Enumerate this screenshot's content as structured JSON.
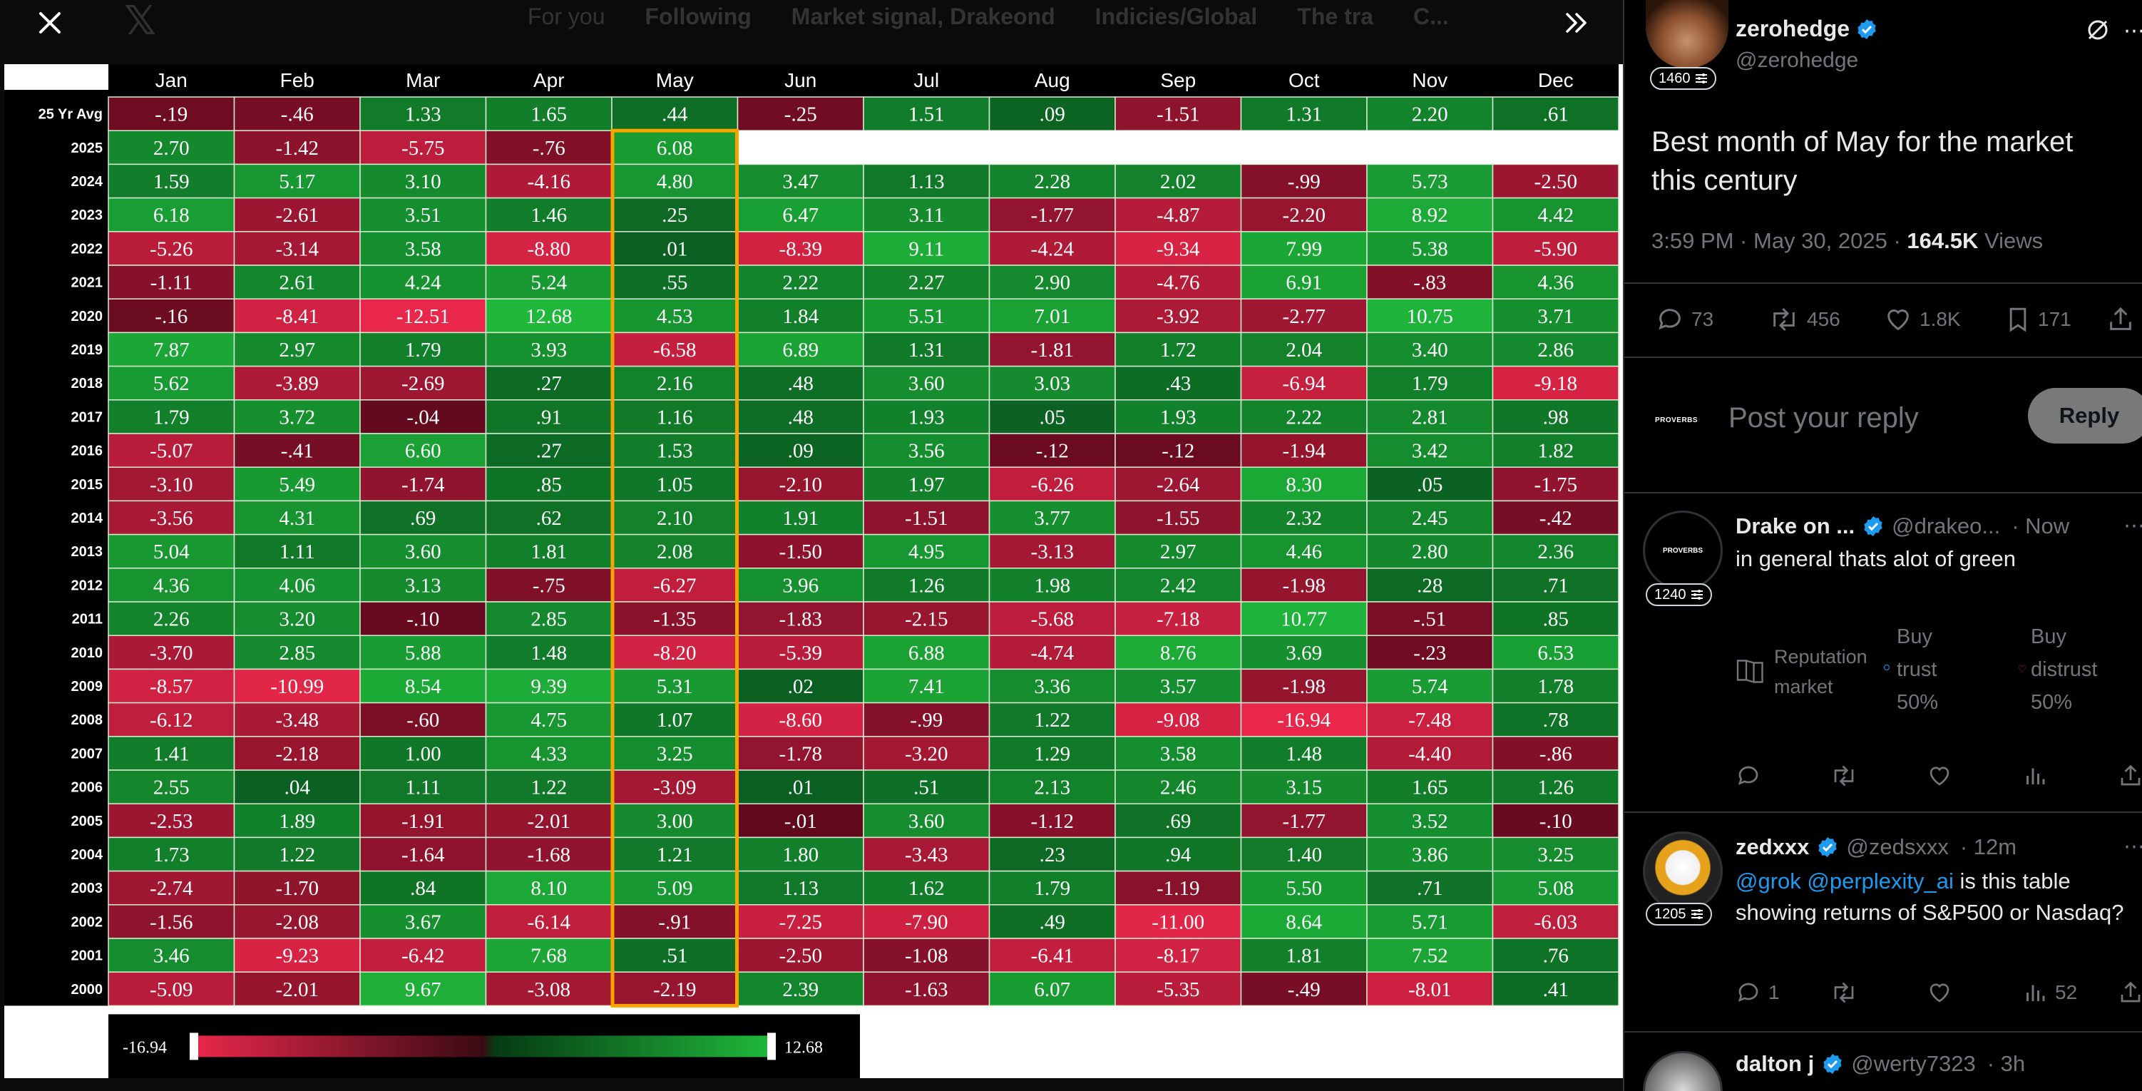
{
  "viewer": {
    "close_label": "×",
    "background_tabs": [
      "For you",
      "Following",
      "Market signal, Drakeond",
      "Indicies/Global",
      "The tra",
      "C..."
    ],
    "legend": {
      "min": "-16.94",
      "max": "12.68"
    }
  },
  "chart_data": {
    "type": "heatmap",
    "title": "",
    "columns": [
      "Jan",
      "Feb",
      "Mar",
      "Apr",
      "May",
      "Jun",
      "Jul",
      "Aug",
      "Sep",
      "Oct",
      "Nov",
      "Dec"
    ],
    "rows": [
      "25 Yr Avg",
      "2025",
      "2024",
      "2023",
      "2022",
      "2021",
      "2020",
      "2019",
      "2018",
      "2017",
      "2016",
      "2015",
      "2014",
      "2013",
      "2012",
      "2011",
      "2010",
      "2009",
      "2008",
      "2007",
      "2006",
      "2005",
      "2004",
      "2003",
      "2002",
      "2001",
      "2000"
    ],
    "values": [
      [
        "-.19",
        "-.46",
        "1.33",
        "1.65",
        ".44",
        "-.25",
        "1.51",
        ".09",
        "-1.51",
        "1.31",
        "2.20",
        ".61"
      ],
      [
        "2.70",
        "-1.42",
        "-5.75",
        "-.76",
        "6.08",
        "",
        "",
        "",
        "",
        "",
        "",
        ""
      ],
      [
        "1.59",
        "5.17",
        "3.10",
        "-4.16",
        "4.80",
        "3.47",
        "1.13",
        "2.28",
        "2.02",
        "-.99",
        "5.73",
        "-2.50"
      ],
      [
        "6.18",
        "-2.61",
        "3.51",
        "1.46",
        ".25",
        "6.47",
        "3.11",
        "-1.77",
        "-4.87",
        "-2.20",
        "8.92",
        "4.42"
      ],
      [
        "-5.26",
        "-3.14",
        "3.58",
        "-8.80",
        ".01",
        "-8.39",
        "9.11",
        "-4.24",
        "-9.34",
        "7.99",
        "5.38",
        "-5.90"
      ],
      [
        "-1.11",
        "2.61",
        "4.24",
        "5.24",
        ".55",
        "2.22",
        "2.27",
        "2.90",
        "-4.76",
        "6.91",
        "-.83",
        "4.36"
      ],
      [
        "-.16",
        "-8.41",
        "-12.51",
        "12.68",
        "4.53",
        "1.84",
        "5.51",
        "7.01",
        "-3.92",
        "-2.77",
        "10.75",
        "3.71"
      ],
      [
        "7.87",
        "2.97",
        "1.79",
        "3.93",
        "-6.58",
        "6.89",
        "1.31",
        "-1.81",
        "1.72",
        "2.04",
        "3.40",
        "2.86"
      ],
      [
        "5.62",
        "-3.89",
        "-2.69",
        ".27",
        "2.16",
        ".48",
        "3.60",
        "3.03",
        ".43",
        "-6.94",
        "1.79",
        "-9.18"
      ],
      [
        "1.79",
        "3.72",
        "-.04",
        ".91",
        "1.16",
        ".48",
        "1.93",
        ".05",
        "1.93",
        "2.22",
        "2.81",
        ".98"
      ],
      [
        "-5.07",
        "-.41",
        "6.60",
        ".27",
        "1.53",
        ".09",
        "3.56",
        "-.12",
        "-.12",
        "-1.94",
        "3.42",
        "1.82"
      ],
      [
        "-3.10",
        "5.49",
        "-1.74",
        ".85",
        "1.05",
        "-2.10",
        "1.97",
        "-6.26",
        "-2.64",
        "8.30",
        ".05",
        "-1.75"
      ],
      [
        "-3.56",
        "4.31",
        ".69",
        ".62",
        "2.10",
        "1.91",
        "-1.51",
        "3.77",
        "-1.55",
        "2.32",
        "2.45",
        "-.42"
      ],
      [
        "5.04",
        "1.11",
        "3.60",
        "1.81",
        "2.08",
        "-1.50",
        "4.95",
        "-3.13",
        "2.97",
        "4.46",
        "2.80",
        "2.36"
      ],
      [
        "4.36",
        "4.06",
        "3.13",
        "-.75",
        "-6.27",
        "3.96",
        "1.26",
        "1.98",
        "2.42",
        "-1.98",
        ".28",
        ".71"
      ],
      [
        "2.26",
        "3.20",
        "-.10",
        "2.85",
        "-1.35",
        "-1.83",
        "-2.15",
        "-5.68",
        "-7.18",
        "10.77",
        "-.51",
        ".85"
      ],
      [
        "-3.70",
        "2.85",
        "5.88",
        "1.48",
        "-8.20",
        "-5.39",
        "6.88",
        "-4.74",
        "8.76",
        "3.69",
        "-.23",
        "6.53"
      ],
      [
        "-8.57",
        "-10.99",
        "8.54",
        "9.39",
        "5.31",
        ".02",
        "7.41",
        "3.36",
        "3.57",
        "-1.98",
        "5.74",
        "1.78"
      ],
      [
        "-6.12",
        "-3.48",
        "-.60",
        "4.75",
        "1.07",
        "-8.60",
        "-.99",
        "1.22",
        "-9.08",
        "-16.94",
        "-7.48",
        ".78"
      ],
      [
        "1.41",
        "-2.18",
        "1.00",
        "4.33",
        "3.25",
        "-1.78",
        "-3.20",
        "1.29",
        "3.58",
        "1.48",
        "-4.40",
        "-.86"
      ],
      [
        "2.55",
        ".04",
        "1.11",
        "1.22",
        "-3.09",
        ".01",
        ".51",
        "2.13",
        "2.46",
        "3.15",
        "1.65",
        "1.26"
      ],
      [
        "-2.53",
        "1.89",
        "-1.91",
        "-2.01",
        "3.00",
        "-.01",
        "3.60",
        "-1.12",
        ".69",
        "-1.77",
        "3.52",
        "-.10"
      ],
      [
        "1.73",
        "1.22",
        "-1.64",
        "-1.68",
        "1.21",
        "1.80",
        "-3.43",
        ".23",
        ".94",
        "1.40",
        "3.86",
        "3.25"
      ],
      [
        "-2.74",
        "-1.70",
        ".84",
        "8.10",
        "5.09",
        "1.13",
        "1.62",
        "1.79",
        "-1.19",
        "5.50",
        ".71",
        "5.08"
      ],
      [
        "-1.56",
        "-2.08",
        "3.67",
        "-6.14",
        "-.91",
        "-7.25",
        "-7.90",
        ".49",
        "-11.00",
        "8.64",
        "5.71",
        "-6.03"
      ],
      [
        "3.46",
        "-9.23",
        "-6.42",
        "7.68",
        ".51",
        "-2.50",
        "-1.08",
        "-6.41",
        "-8.17",
        "1.81",
        "7.52",
        ".76"
      ],
      [
        "-5.09",
        "-2.01",
        "9.67",
        "-3.08",
        "-2.19",
        "2.39",
        "-1.63",
        "6.07",
        "-5.35",
        "-.49",
        "-8.01",
        ".41"
      ]
    ],
    "highlight_column": "May",
    "color_scale": {
      "min": -16.94,
      "max": 12.68,
      "negative": "#e8274a",
      "positive": "#1fb83b",
      "mid": "#0f1a10"
    }
  },
  "tweet": {
    "display_name": "zerohedge",
    "handle": "@zerohedge",
    "badge_count": "1460",
    "text": "Best month of May for the market this century",
    "time": "3:59 PM · May 30, 2025 · ",
    "views_count": "164.5K",
    "views_label": " Views",
    "replies": "73",
    "reposts": "456",
    "likes": "1.8K",
    "bookmarks": "171"
  },
  "reply_box": {
    "avatar_text": "PROVERBS",
    "placeholder": "Post your reply",
    "button": "Reply"
  },
  "replies": [
    {
      "name": "Drake on ...",
      "handle": "@drakeo...",
      "time": "· Now",
      "badge_count": "1240",
      "avatar_text": "PROVERBS",
      "text": "in general thats alot of green",
      "market": {
        "label": "Reputation market",
        "trust_label": "Buy trust",
        "trust_pct": "50%",
        "distrust_label": "Buy distrust",
        "distrust_pct": "50%"
      }
    },
    {
      "name": "zedxxx",
      "handle": "@zedsxxx",
      "time": "· 12m",
      "badge_count": "1205",
      "mention1": "@grok",
      "mention2": "@perplexity_ai",
      "text_rest": " is this table showing returns of S&P500 or Nasdaq?",
      "reply_count": "1",
      "views": "52"
    },
    {
      "name": "dalton j",
      "handle": "@werty7323",
      "time": "· 3h"
    }
  ],
  "colors": {
    "accent": "#1d9bf0",
    "highlight_border": "#f5a400"
  }
}
